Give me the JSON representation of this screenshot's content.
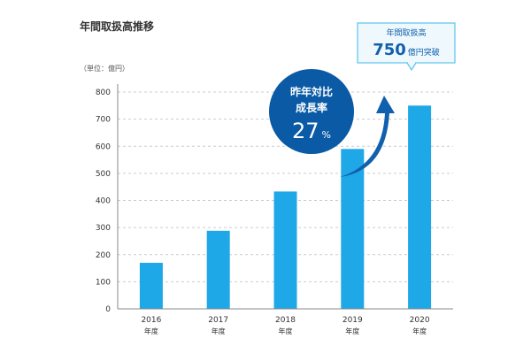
{
  "chart_data": {
    "type": "bar",
    "title": "年間取扱高推移",
    "unit_label": "（単位：億円）",
    "categories": [
      {
        "year": "2016",
        "suffix": "年度"
      },
      {
        "year": "2017",
        "suffix": "年度"
      },
      {
        "year": "2018",
        "suffix": "年度"
      },
      {
        "year": "2019",
        "suffix": "年度"
      },
      {
        "year": "2020",
        "suffix": "年度"
      }
    ],
    "values": [
      170,
      288,
      433,
      590,
      750
    ],
    "ylim": [
      0,
      800
    ],
    "yticks": [
      0,
      100,
      200,
      300,
      400,
      500,
      600,
      700,
      800
    ],
    "grid": true,
    "bar_color": "#1fa8e8",
    "growth_badge": {
      "line1": "昨年対比",
      "line2": "成長率",
      "number": "27",
      "unit": "%",
      "color": "#0a5aa5"
    },
    "callout": {
      "line1": "年間取扱高",
      "number": "750",
      "unit": "億円突破",
      "border_color": "#5cc3ee",
      "fill_color": "#eef8fd"
    }
  }
}
